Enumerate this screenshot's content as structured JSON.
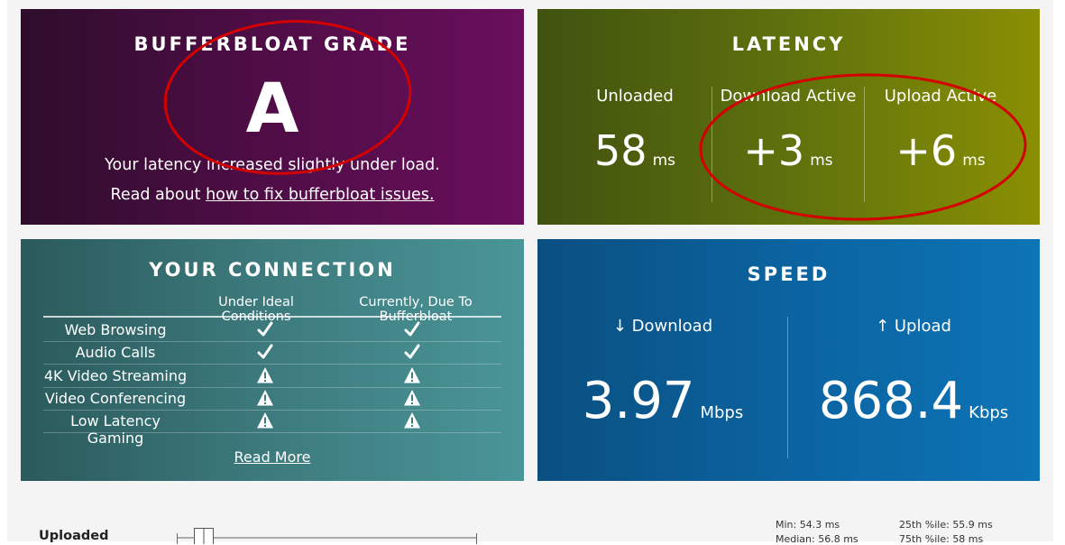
{
  "grade": {
    "title": "BUFFERBLOAT GRADE",
    "letter": "A",
    "line1": "Your latency increased slightly under load.",
    "line2_prefix": "Read about ",
    "line2_link": "how to fix bufferbloat issues."
  },
  "latency": {
    "title": "LATENCY",
    "columns": [
      {
        "label": "Unloaded",
        "value": "58",
        "unit": "ms"
      },
      {
        "label": "Download Active",
        "value": "+3",
        "unit": "ms"
      },
      {
        "label": "Upload Active",
        "value": "+6",
        "unit": "ms"
      }
    ]
  },
  "connection": {
    "title": "YOUR CONNECTION",
    "col1": "Under Ideal Conditions",
    "col2": "Currently, Due To Bufferbloat",
    "rows": [
      {
        "name": "Web Browsing",
        "ideal": "check-icon",
        "current": "check-icon"
      },
      {
        "name": "Audio Calls",
        "ideal": "check-icon",
        "current": "check-icon"
      },
      {
        "name": "4K Video Streaming",
        "ideal": "warning-icon",
        "current": "warning-icon"
      },
      {
        "name": "Video Conferencing",
        "ideal": "warning-icon",
        "current": "warning-icon"
      },
      {
        "name": "Low Latency Gaming",
        "ideal": "warning-icon",
        "current": "warning-icon"
      }
    ],
    "read_more": "Read More"
  },
  "speed": {
    "title": "SPEED",
    "download": {
      "label": "↓ Download",
      "value": "3.97",
      "unit": "Mbps"
    },
    "upload": {
      "label": "↑ Upload",
      "value": "868.4",
      "unit": "Kbps"
    }
  },
  "bottom": {
    "label": "Uploaded",
    "min": "Min: 54.3 ms",
    "median": "Median: 56.8 ms",
    "p25": "25th %ile: 55.9 ms",
    "p75": "75th %ile: 58 ms"
  },
  "colors": {
    "annotation": "#d40000"
  }
}
